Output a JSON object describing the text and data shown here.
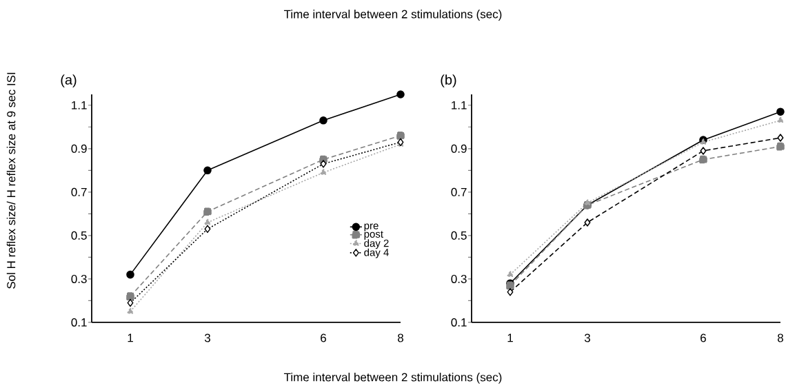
{
  "chart_data": [
    {
      "type": "line",
      "title": "Time interval between 2 stimulations (sec)",
      "xlabel": "Time interval between 2 stimulations (sec)",
      "ylabel": "Sol H reflex size/ H reflex size at 9 sec ISI",
      "annotations": [
        "(a)"
      ],
      "x": [
        1,
        3,
        6,
        8
      ],
      "xlim": [
        0,
        8
      ],
      "xticks": [
        1,
        3,
        6,
        8
      ],
      "ylim": [
        0.1,
        1.15
      ],
      "yticks": [
        0.1,
        {
          "value": 0.2,
          "label": null
        },
        0.3,
        {
          "value": 0.4,
          "label": null
        },
        0.5,
        {
          "value": 0.6,
          "label": null
        },
        0.7,
        {
          "value": 0.8,
          "label": null
        },
        0.9,
        {
          "value": 1.0,
          "label": null
        },
        1.1
      ],
      "grid": false,
      "legend": "center right",
      "series": [
        {
          "name": "pre",
          "color": "#000000",
          "marker": "circle",
          "line_style": "solid",
          "values": [
            0.32,
            0.8,
            1.03,
            1.15
          ]
        },
        {
          "name": "post",
          "color": "#808080",
          "marker": "square",
          "line_style": "dashed",
          "values": [
            0.22,
            0.61,
            0.85,
            0.96
          ]
        },
        {
          "name": "day 2",
          "color": "#a6a6a6",
          "marker": "triangle",
          "line_style": "dotted",
          "values": [
            0.15,
            0.56,
            0.79,
            0.92
          ]
        },
        {
          "name": "day 4",
          "color": "#000000",
          "marker": "diamond",
          "line_style": "dotted",
          "values": [
            0.19,
            0.53,
            0.83,
            0.93
          ]
        }
      ]
    },
    {
      "type": "line",
      "annotations": [
        "(b)"
      ],
      "x": [
        1,
        3,
        6,
        8
      ],
      "xlim": [
        0,
        8
      ],
      "xticks": [
        1,
        3,
        6,
        8
      ],
      "ylim": [
        0.1,
        1.15
      ],
      "yticks": [
        0.1,
        {
          "value": 0.2,
          "label": null
        },
        0.3,
        {
          "value": 0.4,
          "label": null
        },
        0.5,
        {
          "value": 0.6,
          "label": null
        },
        0.7,
        {
          "value": 0.8,
          "label": null
        },
        0.9,
        {
          "value": 1.0,
          "label": null
        },
        1.1
      ],
      "grid": false,
      "series": [
        {
          "color": "#000000",
          "marker": "circle",
          "line_style": "solid",
          "values": [
            0.28,
            0.64,
            0.94,
            1.07
          ]
        },
        {
          "color": "#808080",
          "marker": "square",
          "line_style": "dashed",
          "values": [
            0.27,
            0.64,
            0.85,
            0.91
          ]
        },
        {
          "color": "#a6a6a6",
          "marker": "triangle",
          "line_style": "dotted",
          "values": [
            0.32,
            0.65,
            0.93,
            1.03
          ]
        },
        {
          "color": "#000000",
          "marker": "diamond",
          "line_style": "dashed",
          "values": [
            0.24,
            0.56,
            0.89,
            0.95
          ]
        }
      ]
    }
  ]
}
